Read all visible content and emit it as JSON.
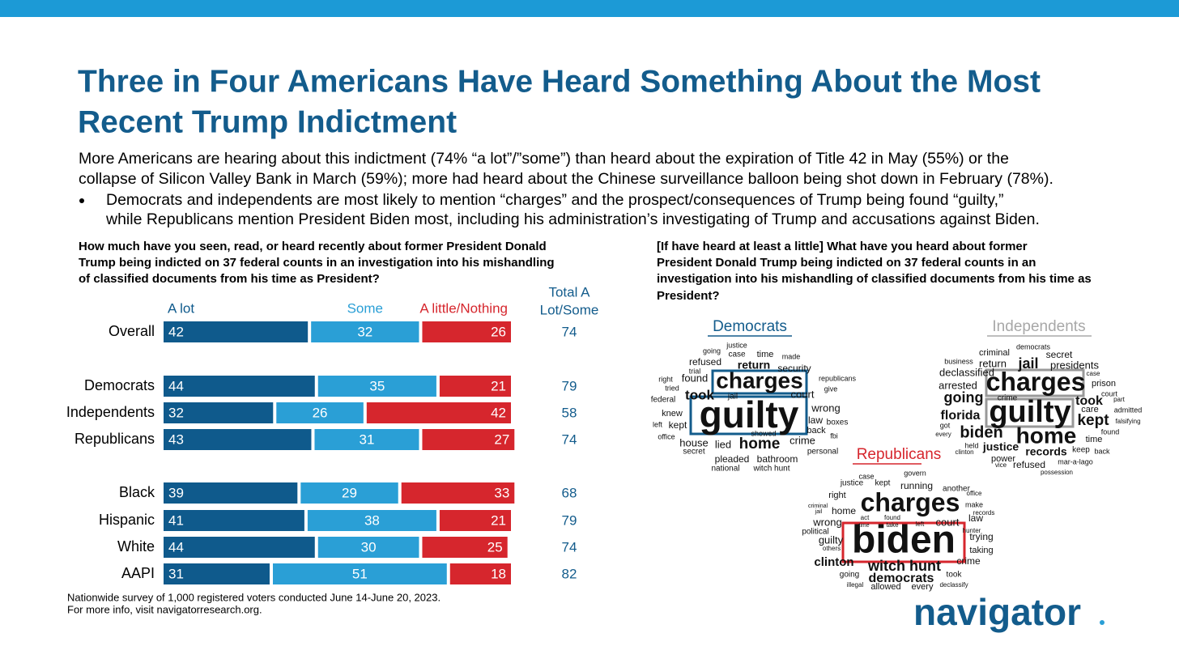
{
  "header": {
    "title_lines": [
      "Three in Four Americans Have Heard Something About the Most",
      "Recent Trump Indictment"
    ],
    "subtitle_lines": [
      "More Americans are hearing about this indictment (74% “a lot”/”some”) than heard about the expiration of Title 42 in May (55%) or the",
      "collapse of Silicon Valley Bank in March (59%); more had heard about the Chinese surveillance balloon being shot down in February (78%)."
    ],
    "bullet_lines": [
      "Democrats and independents are most likely to mention “charges” and the prospect/consequences of Trump being found “guilty,”",
      "while Republicans mention President Biden most, including his administration’s investigating of Trump and accusations against Biden."
    ]
  },
  "chart_data": {
    "type": "stacked-bar-horizontal",
    "title_lines": [
      "How much have you seen, read, or heard recently about former President Donald",
      "Trump being indicted on 37 federal counts in an investigation into his mishandling",
      "of classified documents from his time as President?"
    ],
    "categories": [
      "Overall",
      "Democrats",
      "Independents",
      "Republicans",
      "Black",
      "Hispanic",
      "White",
      "AAPI"
    ],
    "xlim": [
      0,
      100
    ],
    "series": [
      {
        "name": "A lot",
        "color": "#0f5a8c",
        "values": [
          42,
          44,
          32,
          43,
          39,
          41,
          44,
          31
        ]
      },
      {
        "name": "Some",
        "color": "#2a9fd6",
        "values": [
          32,
          35,
          26,
          31,
          29,
          38,
          30,
          51
        ]
      },
      {
        "name": "A little/Nothing",
        "color": "#d6262d",
        "values": [
          26,
          21,
          42,
          27,
          33,
          21,
          25,
          18
        ]
      }
    ],
    "totals": {
      "name_lines": [
        "Total A",
        "Lot/Some"
      ],
      "values": [
        74,
        79,
        58,
        74,
        68,
        79,
        74,
        82
      ]
    }
  },
  "word_question_lines": [
    "[If have heard at least a little] What have you heard about former",
    "President Donald Trump being indicted on 37 federal counts in an",
    "investigation into his mishandling of classified documents from his time as",
    "President?"
  ],
  "word_clouds": [
    {
      "title": "Democrats",
      "words": [
        "justice",
        "going",
        "case",
        "time",
        "made",
        "refused",
        "return",
        "security",
        "trial",
        "right",
        "found",
        "charges",
        "republicans",
        "tried",
        "give",
        "took",
        "jail",
        "court",
        "federal",
        "wrong",
        "guilty",
        "knew",
        "law",
        "boxes",
        "kept",
        "left",
        "back",
        "office",
        "showed",
        "fbi",
        "crime",
        "house",
        "lied",
        "home",
        "secret",
        "personal",
        "pleaded",
        "bathroom",
        "national",
        "witch hunt"
      ]
    },
    {
      "title": "Independents",
      "words": [
        "democrats",
        "criminal",
        "secret",
        "business",
        "return",
        "jail",
        "presidents",
        "case",
        "declassified",
        "charges",
        "prison",
        "arrested",
        "going",
        "crime",
        "took",
        "court",
        "part",
        "care",
        "admitted",
        "florida",
        "guilty",
        "kept",
        "falsifying",
        "got",
        "biden",
        "home",
        "found",
        "every",
        "time",
        "held",
        "justice",
        "keep",
        "back",
        "clinton",
        "records",
        "power",
        "vice",
        "refused",
        "mar-a-lago",
        "possession"
      ]
    },
    {
      "title": "Republicans",
      "words": [
        "case",
        "govern",
        "justice",
        "kept",
        "running",
        "another",
        "right",
        "office",
        "charges",
        "make",
        "criminal",
        "jail",
        "home",
        "records",
        "law",
        "act",
        "found",
        "wrong",
        "court",
        "time",
        "take",
        "left",
        "political",
        "hunter",
        "biden",
        "guilty",
        "trying",
        "others",
        "taking",
        "clinton",
        "witch hunt",
        "crime",
        "democrats",
        "going",
        "took",
        "illegal",
        "allowed",
        "every",
        "declassify"
      ]
    }
  ],
  "footer_lines": [
    "Nationwide survey of 1,000 registered voters conducted June 14-June 20, 2023.",
    "For more info, visit navigatorresearch.org."
  ],
  "logo": "navigator"
}
